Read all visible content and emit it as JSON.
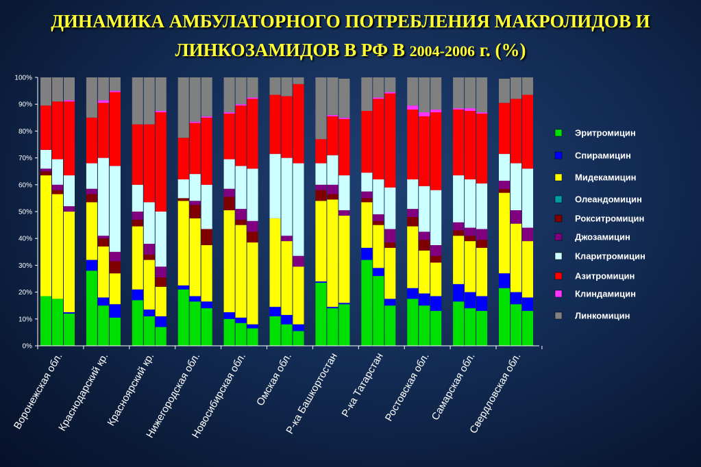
{
  "title": {
    "line1": "ДИНАМИКА АМБУЛАТОРНОГО ПОТРЕБЛЕНИЯ МАКРОЛИДОВ И",
    "line2_main": "ЛИНКОЗАМИДОВ В РФ В ",
    "line2_years": "2004-2006",
    "line2_end": " г. (%)"
  },
  "chart_data": {
    "type": "bar",
    "stacked": true,
    "percent": true,
    "ylim": [
      0,
      100
    ],
    "yticks": [
      "0%",
      "10%",
      "20%",
      "30%",
      "40%",
      "50%",
      "60%",
      "70%",
      "80%",
      "90%",
      "100%"
    ],
    "grid": false,
    "legend_position": "right",
    "bars_per_group": 3,
    "categories": [
      "Воронежская обл.",
      "Краснодарский кр.",
      "Красноярский кр.",
      "Нижегородская обл.",
      "Новосибирская обл.",
      "Омская обл.",
      "Р-ка Башкортостан",
      "Р-ка Татарстан",
      "Ростовская обл.",
      "Самарская обл.",
      "Свердловская обл."
    ],
    "series": [
      {
        "name": "Эритромицин",
        "color": "#00e000",
        "values": [
          [
            18.5,
            17.5,
            12
          ],
          [
            28,
            15,
            10.5
          ],
          [
            17,
            11,
            7
          ],
          [
            21,
            16.5,
            14
          ],
          [
            10,
            8.5,
            6.5
          ],
          [
            11,
            8,
            5.5
          ],
          [
            23.5,
            14,
            15.5
          ],
          [
            32,
            26,
            15
          ],
          [
            17.5,
            15,
            13
          ],
          [
            16.5,
            14,
            13
          ],
          [
            21.5,
            15.5,
            13
          ]
        ]
      },
      {
        "name": "Спирамицин",
        "color": "#0000ff",
        "values": [
          [
            0,
            0,
            0.5
          ],
          [
            4,
            3,
            5
          ],
          [
            4,
            2.5,
            4
          ],
          [
            1.5,
            2,
            2.5
          ],
          [
            2.5,
            2,
            1.5
          ],
          [
            3.5,
            3.5,
            2.5
          ],
          [
            0.5,
            0.5,
            0.5
          ],
          [
            4.5,
            3,
            2.5
          ],
          [
            4,
            4.5,
            5.5
          ],
          [
            6.5,
            6,
            5.5
          ],
          [
            5.5,
            4.5,
            5
          ]
        ]
      },
      {
        "name": "Мидекамицин",
        "color": "#ffff00",
        "values": [
          [
            45,
            39,
            37.5
          ],
          [
            21.5,
            19,
            11.5
          ],
          [
            23.5,
            18.5,
            11
          ],
          [
            31.5,
            29,
            21
          ],
          [
            38,
            34.5,
            30.5
          ],
          [
            33,
            27.5,
            21.5
          ],
          [
            30,
            40,
            32.5
          ],
          [
            17,
            16,
            19
          ],
          [
            23,
            16,
            12.5
          ],
          [
            18,
            19,
            18
          ],
          [
            30,
            25.5,
            21
          ]
        ]
      },
      {
        "name": "Олеандомицин",
        "color": "#00a0a0",
        "values": [
          [
            0,
            0,
            0
          ],
          [
            0,
            0,
            0
          ],
          [
            0,
            0,
            0
          ],
          [
            0,
            0,
            0
          ],
          [
            0,
            0,
            0
          ],
          [
            0,
            0,
            0
          ],
          [
            0,
            0,
            0
          ],
          [
            0,
            0,
            0
          ],
          [
            0,
            0,
            0
          ],
          [
            0,
            0,
            0
          ],
          [
            0,
            0,
            0
          ]
        ]
      },
      {
        "name": "Рокситромицин",
        "color": "#800000",
        "values": [
          [
            1.5,
            1.5,
            0
          ],
          [
            3,
            3,
            4.5
          ],
          [
            2.5,
            2,
            3.5
          ],
          [
            1,
            5,
            6
          ],
          [
            5,
            2,
            4
          ],
          [
            0,
            0,
            0
          ],
          [
            4,
            2,
            0
          ],
          [
            1.5,
            1.5,
            2
          ],
          [
            3.5,
            4,
            2.5
          ],
          [
            2,
            2,
            3
          ],
          [
            1.5,
            0,
            0
          ]
        ]
      },
      {
        "name": "Джозамицин",
        "color": "#800080",
        "values": [
          [
            1,
            2,
            2
          ],
          [
            2,
            1,
            3.5
          ],
          [
            3,
            4,
            4
          ],
          [
            0,
            1.5,
            0
          ],
          [
            3,
            4,
            4
          ],
          [
            0,
            2,
            4
          ],
          [
            2,
            3.5,
            2
          ],
          [
            2.5,
            2.5,
            5
          ],
          [
            3,
            3,
            4
          ],
          [
            3,
            3,
            4
          ],
          [
            3,
            5,
            5
          ]
        ]
      },
      {
        "name": "Кларитромицин",
        "color": "#ccffff",
        "values": [
          [
            7,
            9.5,
            11.5
          ],
          [
            9.5,
            29,
            32
          ],
          [
            10,
            15.5,
            20.5
          ],
          [
            7,
            10,
            16.5
          ],
          [
            11,
            16,
            19.5
          ],
          [
            24,
            29,
            34.5
          ],
          [
            8,
            11,
            13
          ],
          [
            7,
            13,
            15.5
          ],
          [
            11,
            17,
            20.5
          ],
          [
            17.5,
            18,
            17
          ],
          [
            10,
            17.5,
            22
          ]
        ]
      },
      {
        "name": "Азитромицин",
        "color": "#ff0000",
        "values": [
          [
            16.5,
            21.5,
            27.5
          ],
          [
            17,
            20.5,
            27.5
          ],
          [
            22.5,
            29,
            37
          ],
          [
            15.5,
            19,
            25
          ],
          [
            17,
            22.5,
            26
          ],
          [
            22,
            23,
            29.5
          ],
          [
            9,
            14.5,
            21
          ],
          [
            23,
            30,
            35
          ],
          [
            26,
            26,
            29
          ],
          [
            24.5,
            25.5,
            26
          ],
          [
            19,
            24,
            27.5
          ]
        ]
      },
      {
        "name": "Клиндамицин",
        "color": "#ff33ff",
        "values": [
          [
            0,
            0,
            0.5
          ],
          [
            0,
            1,
            0.5
          ],
          [
            0,
            0,
            0.5
          ],
          [
            0,
            0.5,
            0.5
          ],
          [
            0.5,
            0.5,
            0.5
          ],
          [
            0,
            0,
            0
          ],
          [
            0,
            0.5,
            0.5
          ],
          [
            0,
            0.5,
            0.5
          ],
          [
            1.5,
            1.5,
            1
          ],
          [
            0.5,
            1,
            0.5
          ],
          [
            0,
            0,
            0
          ]
        ]
      },
      {
        "name": "Линкомицин",
        "color": "#808080",
        "values": [
          [
            10.5,
            9,
            8.5
          ],
          [
            15,
            8.5,
            5
          ],
          [
            17.5,
            17.5,
            12.5
          ],
          [
            22.5,
            16.5,
            14.5
          ],
          [
            13,
            10,
            7.5
          ],
          [
            6.5,
            7,
            2.5
          ],
          [
            23,
            14,
            14.5
          ],
          [
            12.5,
            7.5,
            5.5
          ],
          [
            10.5,
            13,
            12
          ],
          [
            11.5,
            11.5,
            13
          ],
          [
            9,
            8,
            6.5
          ]
        ]
      }
    ]
  }
}
